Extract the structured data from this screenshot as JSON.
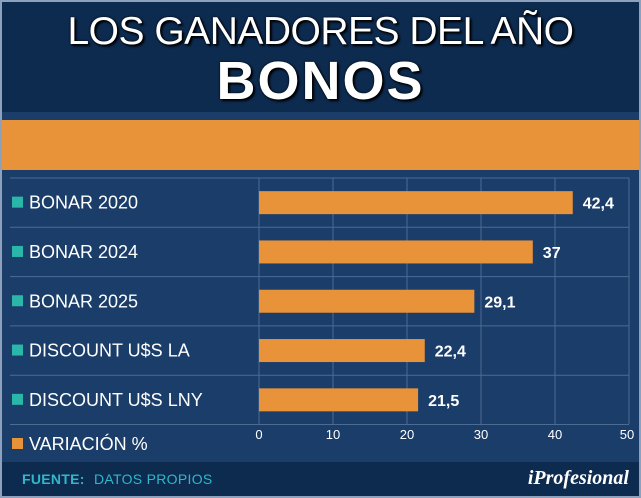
{
  "header": {
    "title_line1": "LOS GANADORES DEL AÑO",
    "title_line2": "BONOS"
  },
  "chart_data": {
    "type": "bar",
    "orientation": "horizontal",
    "categories": [
      "BONAR 2020",
      "BONAR 2024",
      "BONAR 2025",
      "DISCOUNT U$S LA",
      "DISCOUNT U$S LNY"
    ],
    "values": [
      42.4,
      37,
      29.1,
      22.4,
      21.5
    ],
    "value_labels": [
      "42,4",
      "37",
      "29,1",
      "22,4",
      "21,5"
    ],
    "xlim": [
      0,
      50
    ],
    "xticks": [
      0,
      10,
      20,
      30,
      40,
      50
    ],
    "legend": "VARIACIÓN %",
    "series_color": "#e8923a",
    "marker_color": "#2ab7a9"
  },
  "footer": {
    "source_label": "FUENTE:",
    "source_value": "DATOS PROPIOS",
    "brand": "iProfesional"
  }
}
